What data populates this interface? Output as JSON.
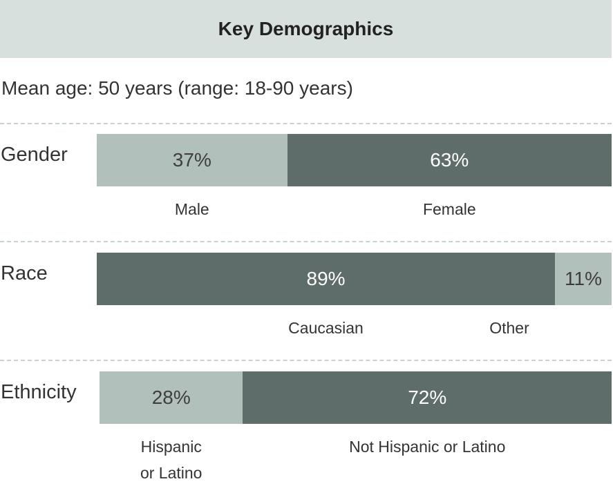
{
  "header": {
    "title": "Key Demographics"
  },
  "mean_age": "Mean age: 50 years (range: 18-90 years)",
  "colors": {
    "light": "#b2c0bc",
    "dark": "#5e6d69",
    "header_band": "#d8e0dd",
    "divider": "#c7d2ce"
  },
  "chart_data": {
    "type": "bar",
    "orientation": "horizontal",
    "stacked": true,
    "title": "Key Demographics",
    "rows": [
      {
        "label": "Gender",
        "segments": [
          {
            "name": "Male",
            "value": 37,
            "label": "37%",
            "shade": "light"
          },
          {
            "name": "Female",
            "value": 63,
            "label": "63%",
            "shade": "dark"
          }
        ]
      },
      {
        "label": "Race",
        "segments": [
          {
            "name": "Caucasian",
            "value": 89,
            "label": "89%",
            "shade": "dark"
          },
          {
            "name": "Other",
            "value": 11,
            "label": "11%",
            "shade": "light"
          }
        ]
      },
      {
        "label": "Ethnicity",
        "segments": [
          {
            "name": "Hispanic\nor Latino",
            "value": 28,
            "label": "28%",
            "shade": "light"
          },
          {
            "name": "Not Hispanic or Latino",
            "value": 72,
            "label": "72%",
            "shade": "dark"
          }
        ]
      }
    ]
  }
}
